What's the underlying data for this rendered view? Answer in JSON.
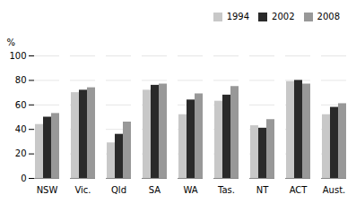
{
  "chart_data": {
    "type": "bar",
    "categories": [
      "NSW",
      "Vic.",
      "Qld",
      "SA",
      "WA",
      "Tas.",
      "NT",
      "ACT",
      "Aust."
    ],
    "series": [
      {
        "name": "1994",
        "color": "#c8c8c8",
        "values": [
          44,
          70,
          29,
          72,
          52,
          63,
          43,
          79,
          52
        ]
      },
      {
        "name": "2002",
        "color": "#2a2a2a",
        "values": [
          50,
          72,
          36,
          76,
          64,
          68,
          41,
          80,
          58
        ]
      },
      {
        "name": "2008",
        "color": "#989898",
        "values": [
          53,
          74,
          46,
          77,
          69,
          75,
          48,
          77,
          61
        ]
      }
    ],
    "ylabel": "%",
    "ylim": [
      0,
      100
    ],
    "yticks": [
      0,
      20,
      40,
      60,
      80,
      100
    ],
    "grid": true,
    "legend": "upper right"
  }
}
